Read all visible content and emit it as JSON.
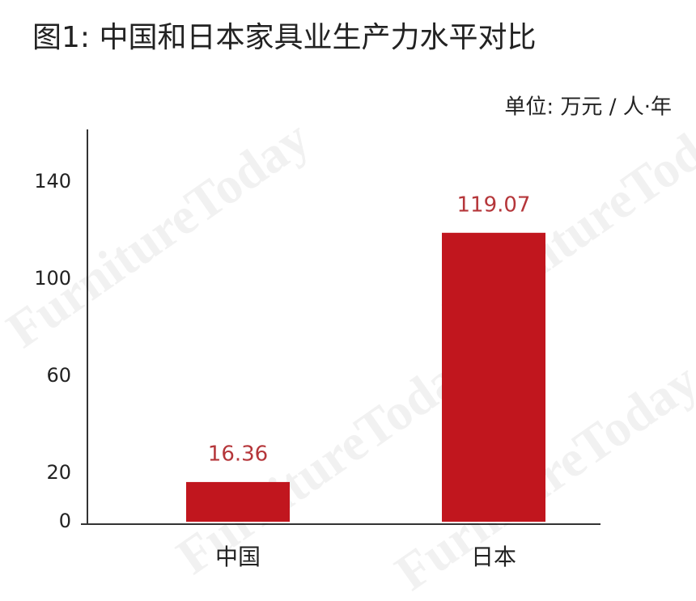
{
  "chart_data": {
    "type": "bar",
    "title": "图1: 中国和日本家具业生产力水平对比",
    "unit": "单位: 万元 / 人·年",
    "watermark": "FurnitureToday",
    "categories": [
      "中国",
      "日本"
    ],
    "values": [
      16.36,
      119.07
    ],
    "color": "#c1161e",
    "value_label_color": "#b5363a",
    "ylim": [
      0,
      160
    ],
    "yticks": [
      0,
      20,
      60,
      100,
      140
    ],
    "grid": false
  }
}
